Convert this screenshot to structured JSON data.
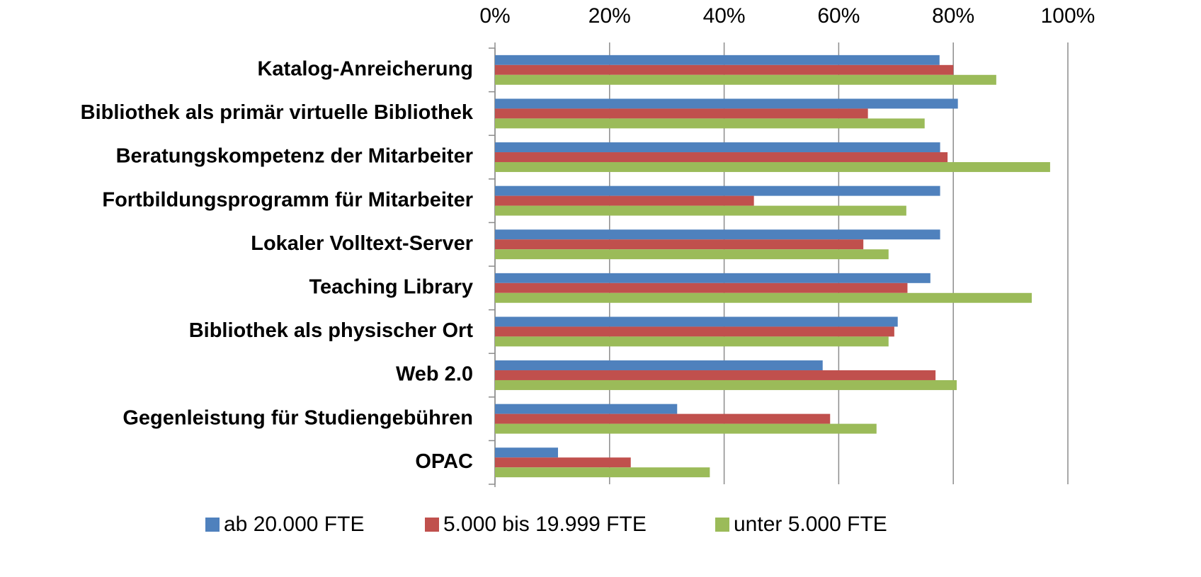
{
  "chart_data": {
    "type": "bar",
    "orientation": "horizontal",
    "categories": [
      "Katalog-Anreicherung",
      "Bibliothek als primär virtuelle Bibliothek",
      "Beratungskompetenz der Mitarbeiter",
      "Fortbildungsprogramm für Mitarbeiter",
      "Lokaler Volltext-Server",
      "Teaching Library",
      "Bibliothek als physischer Ort",
      "Web 2.0",
      "Gegenleistung für Studiengebühren",
      "OPAC"
    ],
    "series": [
      {
        "name": "ab 20.000 FTE",
        "color": "#4f81bd",
        "values": [
          77.6,
          80.8,
          77.7,
          77.7,
          77.7,
          76,
          70.3,
          57.2,
          31.8,
          11
        ]
      },
      {
        "name": "5.000 bis 19.999 FTE",
        "color": "#c0504d",
        "values": [
          80,
          65.1,
          79,
          45.2,
          64.3,
          72,
          69.7,
          76.9,
          58.5,
          23.7
        ]
      },
      {
        "name": "unter 5.000 FTE",
        "color": "#9bbb59",
        "values": [
          87.5,
          75,
          96.9,
          71.8,
          68.7,
          93.7,
          68.7,
          80.6,
          66.6,
          37.5
        ]
      }
    ],
    "xlim": [
      0,
      100
    ],
    "xticks": [
      {
        "value": 0,
        "label": "0%"
      },
      {
        "value": 20,
        "label": "20%"
      },
      {
        "value": 40,
        "label": "40%"
      },
      {
        "value": 60,
        "label": "60%"
      },
      {
        "value": 80,
        "label": "80%"
      },
      {
        "value": 100,
        "label": "100%"
      }
    ],
    "grid": true,
    "legend": "bottom"
  }
}
